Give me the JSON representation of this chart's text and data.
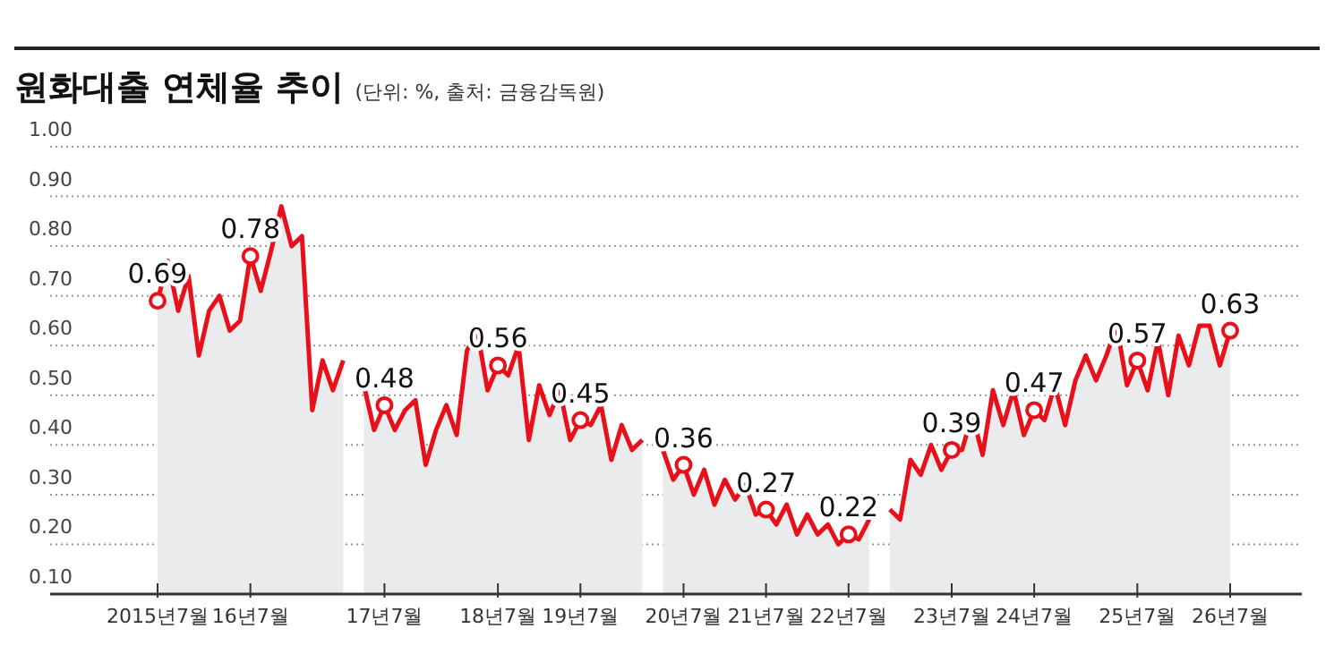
{
  "chart_data": {
    "type": "area",
    "title": "원화대출 연체율 추이",
    "subtitle": "(단위: %, 출처: 금융감독원)",
    "categories": [
      "2015년7월",
      null,
      null,
      null,
      null,
      null,
      null,
      null,
      null,
      "16년7월",
      null,
      null,
      null,
      null,
      null,
      null,
      null,
      null,
      null,
      null,
      null,
      null,
      "17년7월",
      null,
      null,
      null,
      null,
      null,
      null,
      null,
      null,
      null,
      null,
      "18년7월",
      null,
      null,
      null,
      null,
      null,
      null,
      null,
      "19년7월",
      null,
      null,
      null,
      null,
      null,
      null,
      null,
      null,
      null,
      "20년7월",
      null,
      null,
      null,
      null,
      null,
      null,
      null,
      "21년7월",
      null,
      null,
      null,
      null,
      null,
      null,
      null,
      "22년7월",
      null,
      null,
      null,
      null,
      null,
      null,
      null,
      null,
      null,
      "23년7월",
      null,
      null,
      null,
      null,
      null,
      null,
      null,
      "24년7월",
      null,
      null,
      null,
      null,
      null,
      null,
      null,
      null,
      null,
      "25년7월",
      null,
      null,
      null,
      null,
      null,
      null,
      null,
      null,
      "26년7월"
    ],
    "series": [
      {
        "color": "#e8101a",
        "values": [
          0.69,
          0.77,
          0.67,
          0.74,
          0.58,
          0.67,
          0.7,
          0.63,
          0.65,
          0.78,
          0.71,
          0.79,
          0.88,
          0.8,
          0.82,
          0.47,
          0.57,
          0.51,
          0.57,
          null,
          0.52,
          0.43,
          0.48,
          0.43,
          0.47,
          0.49,
          0.36,
          0.43,
          0.48,
          0.42,
          0.59,
          0.63,
          0.51,
          0.56,
          0.54,
          0.6,
          0.41,
          0.52,
          0.46,
          0.51,
          0.41,
          0.45,
          0.44,
          0.48,
          0.37,
          0.44,
          0.39,
          0.41,
          null,
          0.39,
          0.33,
          0.36,
          0.3,
          0.35,
          0.28,
          0.33,
          0.29,
          0.32,
          0.26,
          0.27,
          0.24,
          0.28,
          0.22,
          0.26,
          0.22,
          0.24,
          0.2,
          0.22,
          0.21,
          0.25,
          null,
          0.27,
          0.25,
          0.37,
          0.34,
          0.4,
          0.35,
          0.39,
          0.39,
          0.46,
          0.38,
          0.51,
          0.44,
          0.51,
          0.42,
          0.47,
          0.45,
          0.52,
          0.44,
          0.53,
          0.58,
          0.53,
          0.58,
          0.64,
          0.52,
          0.57,
          0.51,
          0.61,
          0.5,
          0.62,
          0.56,
          0.64,
          0.64,
          0.56,
          0.63
        ],
        "value_labels": [
          "0.69",
          null,
          null,
          null,
          null,
          null,
          null,
          null,
          null,
          "0.78",
          null,
          null,
          null,
          null,
          null,
          null,
          null,
          null,
          null,
          null,
          null,
          null,
          "0.48",
          null,
          null,
          null,
          null,
          null,
          null,
          null,
          null,
          null,
          null,
          "0.56",
          null,
          null,
          null,
          null,
          null,
          null,
          null,
          "0.45",
          null,
          null,
          null,
          null,
          null,
          null,
          null,
          null,
          null,
          "0.36",
          null,
          null,
          null,
          null,
          null,
          null,
          null,
          "0.27",
          null,
          null,
          null,
          null,
          null,
          null,
          null,
          "0.22",
          null,
          null,
          null,
          null,
          null,
          null,
          null,
          null,
          null,
          "0.39",
          null,
          null,
          null,
          null,
          null,
          null,
          null,
          "0.47",
          null,
          null,
          null,
          null,
          null,
          null,
          null,
          null,
          null,
          "0.57",
          null,
          null,
          null,
          null,
          null,
          null,
          null,
          null,
          "0.63"
        ]
      }
    ],
    "ylim": [
      0.1,
      1.0
    ],
    "yticks": [
      {
        "value": 0.1,
        "label": "0.10"
      },
      {
        "value": 0.2,
        "label": "0.20"
      },
      {
        "value": 0.3,
        "label": "0.30"
      },
      {
        "value": 0.4,
        "label": "0.40"
      },
      {
        "value": 0.5,
        "label": "0.50"
      },
      {
        "value": 0.6,
        "label": "0.60"
      },
      {
        "value": 0.7,
        "label": "0.70"
      },
      {
        "value": 0.8,
        "label": "0.80"
      },
      {
        "value": 0.9,
        "label": "0.90"
      },
      {
        "value": 1.0,
        "label": "1.00"
      }
    ],
    "grid": "y",
    "legend": false
  }
}
